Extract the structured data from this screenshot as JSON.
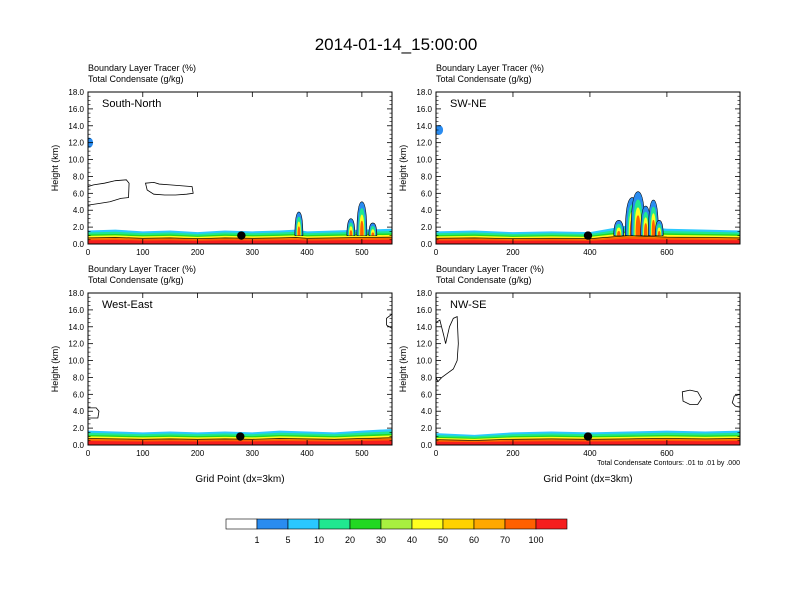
{
  "title": "2014-01-14_15:00:00",
  "chart_data": [
    {
      "type": "contour",
      "panel": "South-North",
      "subtitle_line1": "Boundary Layer Tracer   (%)",
      "subtitle_line2": "Total Condensate   (g/kg)",
      "ylabel": "Height (km)",
      "xlabel": "",
      "ylim": [
        0,
        18
      ],
      "xlim": [
        0,
        555
      ],
      "yticks": [
        "0.0",
        "2.0",
        "4.0",
        "6.0",
        "8.0",
        "10.0",
        "12.0",
        "14.0",
        "16.0",
        "18.0"
      ],
      "xticks": [
        0,
        100,
        200,
        300,
        400,
        500
      ],
      "marker_x": 280,
      "marker_y": 1.0,
      "boundary_layer_top": [
        [
          0,
          1.6
        ],
        [
          50,
          1.7
        ],
        [
          100,
          1.5
        ],
        [
          150,
          1.6
        ],
        [
          200,
          1.4
        ],
        [
          250,
          1.6
        ],
        [
          300,
          1.5
        ],
        [
          350,
          1.6
        ],
        [
          380,
          1.7
        ],
        [
          400,
          1.5
        ],
        [
          450,
          1.6
        ],
        [
          500,
          1.7
        ],
        [
          555,
          1.8
        ]
      ],
      "convection": [
        {
          "x": 385,
          "top": 3.8,
          "width": 8
        },
        {
          "x": 480,
          "top": 3.0,
          "width": 8
        },
        {
          "x": 500,
          "top": 5.0,
          "width": 10
        },
        {
          "x": 520,
          "top": 2.5,
          "width": 8
        }
      ],
      "condensate_outlines": [
        [
          [
            0,
            6.8
          ],
          [
            10,
            7.0
          ],
          [
            30,
            7.2
          ],
          [
            50,
            7.5
          ],
          [
            70,
            7.6
          ],
          [
            75,
            7.2
          ],
          [
            74,
            5.5
          ],
          [
            60,
            5.4
          ],
          [
            40,
            5.0
          ],
          [
            20,
            4.8
          ],
          [
            0,
            4.6
          ]
        ],
        [
          [
            105,
            7.2
          ],
          [
            120,
            7.3
          ],
          [
            130,
            7.1
          ],
          [
            150,
            7.0
          ],
          [
            170,
            6.9
          ],
          [
            190,
            6.8
          ],
          [
            192,
            6.0
          ],
          [
            180,
            5.9
          ],
          [
            160,
            5.8
          ],
          [
            140,
            5.8
          ],
          [
            120,
            5.9
          ],
          [
            108,
            6.4
          ]
        ]
      ],
      "blue_spot": {
        "x": 2,
        "y": 12.0
      }
    },
    {
      "type": "contour",
      "panel": "SW-NE",
      "subtitle_line1": "Boundary Layer Tracer   (%)",
      "subtitle_line2": "Total Condensate   (g/kg)",
      "ylabel": "Height (km)",
      "xlabel": "",
      "ylim": [
        0,
        18
      ],
      "xlim": [
        0,
        790
      ],
      "yticks": [
        "0.0",
        "2.0",
        "4.0",
        "6.0",
        "8.0",
        "10.0",
        "12.0",
        "14.0",
        "16.0",
        "18.0"
      ],
      "xticks": [
        0,
        200,
        400,
        600
      ],
      "marker_x": 395,
      "marker_y": 1.0,
      "boundary_layer_top": [
        [
          0,
          1.5
        ],
        [
          100,
          1.6
        ],
        [
          200,
          1.4
        ],
        [
          300,
          1.5
        ],
        [
          400,
          1.4
        ],
        [
          450,
          1.8
        ],
        [
          500,
          2.2
        ],
        [
          550,
          2.0
        ],
        [
          600,
          1.8
        ],
        [
          700,
          1.7
        ],
        [
          790,
          1.6
        ]
      ],
      "convection": [
        {
          "x": 475,
          "top": 2.8,
          "width": 10
        },
        {
          "x": 510,
          "top": 5.5,
          "width": 14
        },
        {
          "x": 525,
          "top": 6.2,
          "width": 14
        },
        {
          "x": 545,
          "top": 4.5,
          "width": 10
        },
        {
          "x": 565,
          "top": 5.2,
          "width": 10
        },
        {
          "x": 580,
          "top": 2.8,
          "width": 8
        }
      ],
      "condensate_outlines": [],
      "blue_spot": {
        "x": 8,
        "y": 13.5
      }
    },
    {
      "type": "contour",
      "panel": "West-East",
      "subtitle_line1": "Boundary Layer Tracer   (%)",
      "subtitle_line2": "Total Condensate   (g/kg)",
      "ylabel": "Height (km)",
      "xlabel": "Grid Point (dx=3km)",
      "ylim": [
        0,
        18
      ],
      "xlim": [
        0,
        555
      ],
      "yticks": [
        "0.0",
        "2.0",
        "4.0",
        "6.0",
        "8.0",
        "10.0",
        "12.0",
        "14.0",
        "16.0",
        "18.0"
      ],
      "xticks": [
        0,
        100,
        200,
        300,
        400,
        500
      ],
      "marker_x": 278,
      "marker_y": 1.0,
      "boundary_layer_top": [
        [
          0,
          1.7
        ],
        [
          50,
          1.6
        ],
        [
          100,
          1.5
        ],
        [
          150,
          1.6
        ],
        [
          200,
          1.5
        ],
        [
          250,
          1.6
        ],
        [
          300,
          1.5
        ],
        [
          350,
          1.7
        ],
        [
          400,
          1.6
        ],
        [
          450,
          1.5
        ],
        [
          500,
          1.7
        ],
        [
          555,
          1.9
        ]
      ],
      "convection": [],
      "condensate_outlines": [
        [
          [
            0,
            4.4
          ],
          [
            15,
            4.4
          ],
          [
            20,
            4.0
          ],
          [
            18,
            3.2
          ],
          [
            0,
            3.2
          ]
        ],
        [
          [
            555,
            15.5
          ],
          [
            545,
            15.0
          ],
          [
            545,
            14.2
          ],
          [
            555,
            13.8
          ]
        ]
      ],
      "blue_spot": null
    },
    {
      "type": "contour",
      "panel": "NW-SE",
      "subtitle_line1": "Boundary Layer Tracer   (%)",
      "subtitle_line2": "Total Condensate   (g/kg)",
      "ylabel": "Height (km)",
      "xlabel": "Grid Point (dx=3km)",
      "ylim": [
        0,
        18
      ],
      "xlim": [
        0,
        790
      ],
      "yticks": [
        "0.0",
        "2.0",
        "4.0",
        "6.0",
        "8.0",
        "10.0",
        "12.0",
        "14.0",
        "16.0",
        "18.0"
      ],
      "xticks": [
        0,
        200,
        400,
        600
      ],
      "marker_x": 395,
      "marker_y": 1.0,
      "boundary_layer_top": [
        [
          0,
          1.4
        ],
        [
          100,
          1.2
        ],
        [
          200,
          1.5
        ],
        [
          300,
          1.6
        ],
        [
          400,
          1.5
        ],
        [
          500,
          1.6
        ],
        [
          600,
          1.7
        ],
        [
          700,
          1.6
        ],
        [
          790,
          1.7
        ]
      ],
      "convection": [],
      "condensate_outlines": [
        [
          [
            0,
            14.5
          ],
          [
            10,
            14.8
          ],
          [
            20,
            13.0
          ],
          [
            25,
            12.0
          ],
          [
            35,
            14.0
          ],
          [
            45,
            15.0
          ],
          [
            55,
            15.2
          ],
          [
            58,
            12.0
          ],
          [
            55,
            10.0
          ],
          [
            45,
            9.0
          ],
          [
            30,
            8.5
          ],
          [
            15,
            8.0
          ],
          [
            5,
            7.5
          ],
          [
            0,
            8.0
          ]
        ],
        [
          [
            640,
            6.3
          ],
          [
            660,
            6.5
          ],
          [
            680,
            6.3
          ],
          [
            690,
            5.5
          ],
          [
            680,
            4.8
          ],
          [
            660,
            4.8
          ],
          [
            642,
            5.2
          ]
        ],
        [
          [
            790,
            6.0
          ],
          [
            775,
            5.8
          ],
          [
            770,
            5.0
          ],
          [
            778,
            4.6
          ],
          [
            790,
            4.5
          ]
        ]
      ],
      "blue_spot": null,
      "note": "Total Condensate Contours: .01 to .01 by .000"
    }
  ],
  "colorbar": {
    "colors": [
      "#ffffff",
      "#2a8cf0",
      "#2ac8ff",
      "#20e890",
      "#22d822",
      "#a8f040",
      "#ffff20",
      "#ffd200",
      "#ffa800",
      "#ff6000",
      "#f51e1e"
    ],
    "labels": [
      "1",
      "5",
      "10",
      "20",
      "30",
      "40",
      "50",
      "60",
      "70",
      "100"
    ]
  }
}
